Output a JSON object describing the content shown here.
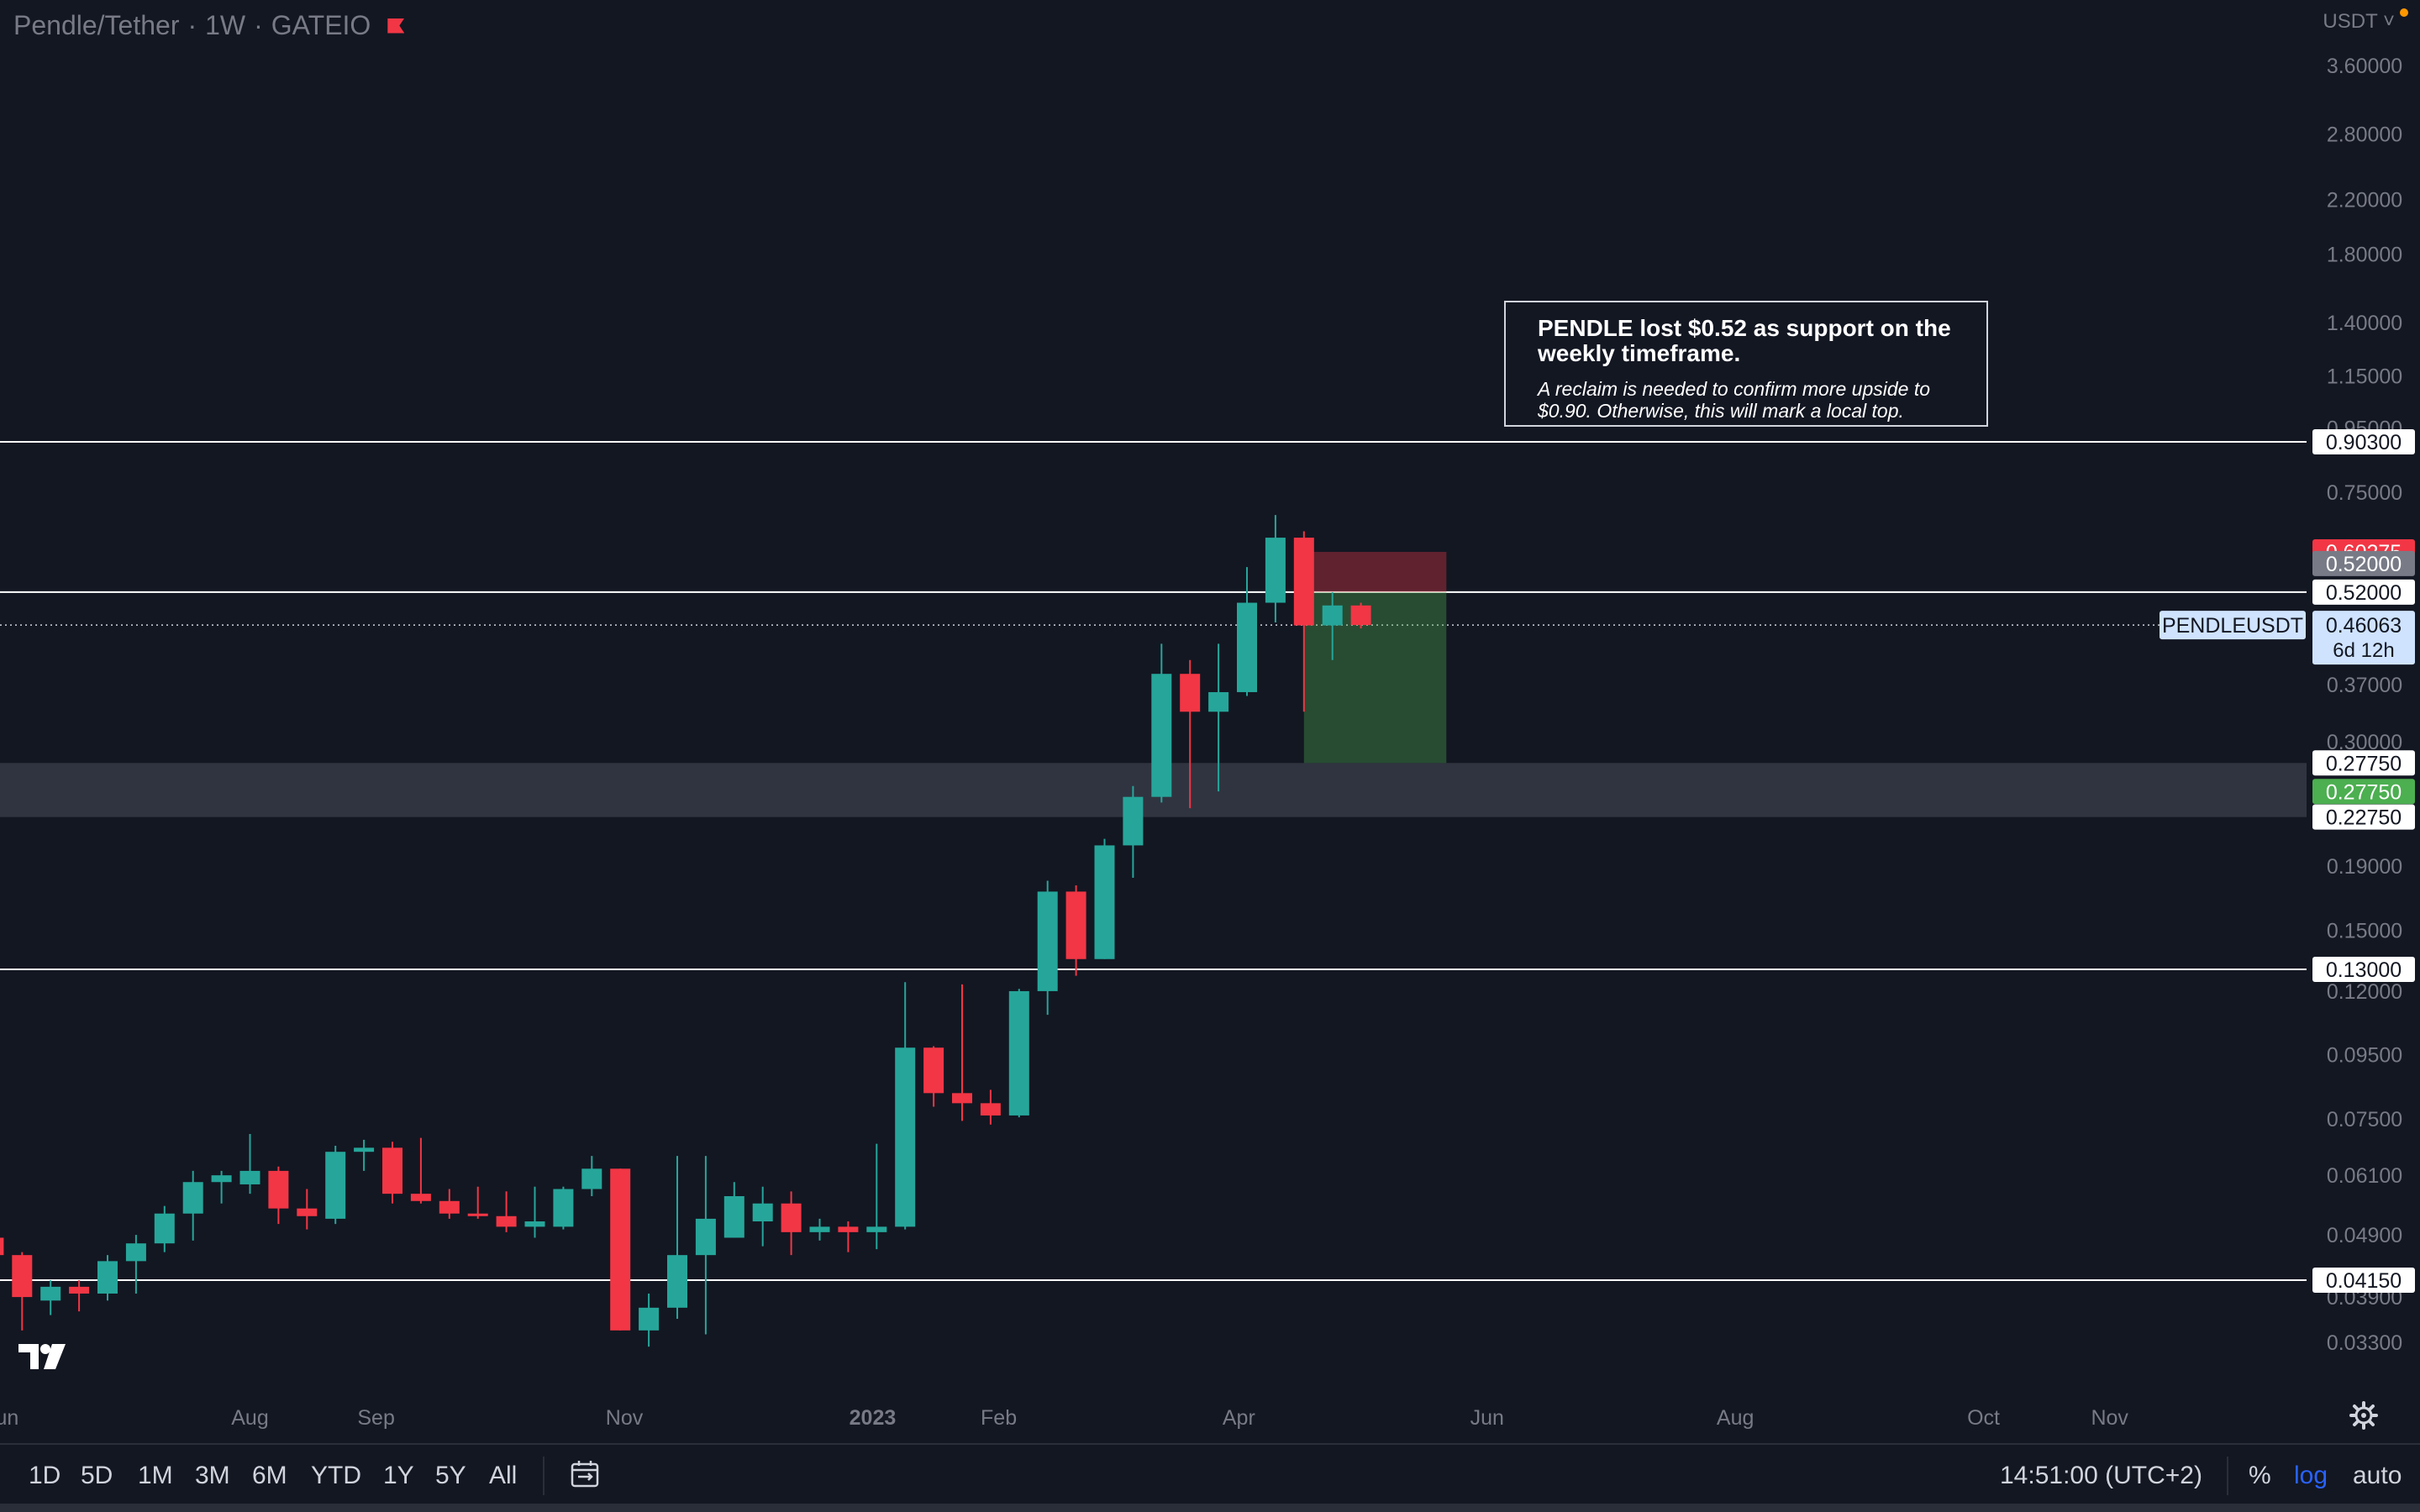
{
  "legend": {
    "title": "Pendle/Tether",
    "timeframe": "1W",
    "exchange": "GATEIO"
  },
  "currency": "USDT",
  "note": {
    "headline": "PENDLE lost $0.52 as support on the weekly timeframe.",
    "subtext": "A reclaim is needed to confirm more upside to $0.90. Otherwise, this will mark a local top."
  },
  "toolbar": {
    "range_buttons": [
      "1D",
      "5D",
      "1M",
      "3M",
      "6M",
      "YTD",
      "1Y",
      "5Y",
      "All"
    ],
    "clock": "14:51:00 (UTC+2)",
    "percent_label": "%",
    "log_label": "log",
    "auto_label": "auto"
  },
  "colors": {
    "background": "#131722",
    "up": "#26a69a",
    "down": "#f23645",
    "grid_text": "#787b86",
    "hline": "#ffffff"
  },
  "chart_data": {
    "type": "candlestick",
    "symbol": "PENDLEUSDT",
    "last_price": "0.46063",
    "countdown": "6d 12h",
    "y_scale": "log",
    "y_ticks": [
      "3.60000",
      "2.80000",
      "2.20000",
      "1.80000",
      "1.40000",
      "1.15000",
      "0.95000",
      "0.75000",
      "0.60000",
      "0.37000",
      "0.30000",
      "0.19000",
      "0.15000",
      "0.12000",
      "0.09500",
      "0.07500",
      "0.06100",
      "0.04900",
      "0.03900",
      "0.03300"
    ],
    "y_tick_values": [
      3.6,
      2.8,
      2.2,
      1.8,
      1.4,
      1.15,
      0.95,
      0.75,
      0.6,
      0.37,
      0.3,
      0.19,
      0.15,
      0.12,
      0.095,
      0.075,
      0.061,
      0.049,
      0.039,
      0.033
    ],
    "x_ticks": [
      "Jun",
      "Aug",
      "Sep",
      "Nov",
      "2023",
      "Feb",
      "Apr",
      "Jun",
      "Aug",
      "Oct",
      "Nov"
    ],
    "x_tick_dates": [
      "2022-06-01",
      "2022-08-01",
      "2022-09-01",
      "2022-11-01",
      "2023-01-01",
      "2023-02-01",
      "2023-04-01",
      "2023-06-01",
      "2023-08-01",
      "2023-10-01",
      "2023-11-01"
    ],
    "horizontal_lines": [
      {
        "label": "0.90300",
        "value": 0.903
      },
      {
        "label": "0.52000",
        "value": 0.52
      },
      {
        "label": "0.13000",
        "value": 0.13
      },
      {
        "label": "0.04150",
        "value": 0.0415
      }
    ],
    "zone": {
      "top_label": "0.27750",
      "top": 0.2775,
      "bottom_label": "0.22750",
      "bottom": 0.2275
    },
    "position": {
      "type": "short",
      "start": "2023-04-17",
      "end": "2023-05-22",
      "stop": 0.60275,
      "entry": 0.52,
      "target": 0.2775,
      "stop_label": "0.60275",
      "entry_label": "0.52000",
      "target_label": "0.27750"
    },
    "candles": [
      {
        "date": "2022-05-30",
        "o": 0.0485,
        "h": 0.0495,
        "l": 0.045,
        "c": 0.0455
      },
      {
        "date": "2022-06-06",
        "o": 0.0455,
        "h": 0.046,
        "l": 0.0345,
        "c": 0.039
      },
      {
        "date": "2022-06-13",
        "o": 0.0385,
        "h": 0.0415,
        "l": 0.0365,
        "c": 0.0405
      },
      {
        "date": "2022-06-20",
        "o": 0.0405,
        "h": 0.0415,
        "l": 0.037,
        "c": 0.0395
      },
      {
        "date": "2022-06-27",
        "o": 0.0395,
        "h": 0.0455,
        "l": 0.0385,
        "c": 0.0445
      },
      {
        "date": "2022-07-04",
        "o": 0.0445,
        "h": 0.049,
        "l": 0.0395,
        "c": 0.0475
      },
      {
        "date": "2022-07-11",
        "o": 0.0475,
        "h": 0.0545,
        "l": 0.046,
        "c": 0.053
      },
      {
        "date": "2022-07-18",
        "o": 0.053,
        "h": 0.062,
        "l": 0.048,
        "c": 0.0595
      },
      {
        "date": "2022-07-25",
        "o": 0.0595,
        "h": 0.062,
        "l": 0.055,
        "c": 0.061
      },
      {
        "date": "2022-08-01",
        "o": 0.059,
        "h": 0.071,
        "l": 0.057,
        "c": 0.062
      },
      {
        "date": "2022-08-08",
        "o": 0.062,
        "h": 0.063,
        "l": 0.051,
        "c": 0.054
      },
      {
        "date": "2022-08-15",
        "o": 0.054,
        "h": 0.058,
        "l": 0.05,
        "c": 0.0525
      },
      {
        "date": "2022-08-22",
        "o": 0.052,
        "h": 0.068,
        "l": 0.051,
        "c": 0.0665
      },
      {
        "date": "2022-08-29",
        "o": 0.0665,
        "h": 0.0695,
        "l": 0.062,
        "c": 0.0675
      },
      {
        "date": "2022-09-05",
        "o": 0.0675,
        "h": 0.069,
        "l": 0.055,
        "c": 0.057
      },
      {
        "date": "2022-09-12",
        "o": 0.057,
        "h": 0.07,
        "l": 0.055,
        "c": 0.0555
      },
      {
        "date": "2022-09-19",
        "o": 0.0555,
        "h": 0.058,
        "l": 0.052,
        "c": 0.053
      },
      {
        "date": "2022-09-26",
        "o": 0.053,
        "h": 0.0585,
        "l": 0.052,
        "c": 0.0525
      },
      {
        "date": "2022-10-03",
        "o": 0.0525,
        "h": 0.0575,
        "l": 0.0495,
        "c": 0.0505
      },
      {
        "date": "2022-10-10",
        "o": 0.0505,
        "h": 0.0585,
        "l": 0.0485,
        "c": 0.0515
      },
      {
        "date": "2022-10-17",
        "o": 0.0505,
        "h": 0.0585,
        "l": 0.05,
        "c": 0.058
      },
      {
        "date": "2022-10-24",
        "o": 0.058,
        "h": 0.0655,
        "l": 0.0565,
        "c": 0.0625
      },
      {
        "date": "2022-10-31",
        "o": 0.0625,
        "h": 0.0625,
        "l": 0.0345,
        "c": 0.0345
      },
      {
        "date": "2022-11-07",
        "o": 0.0345,
        "h": 0.0395,
        "l": 0.0325,
        "c": 0.0375
      },
      {
        "date": "2022-11-14",
        "o": 0.0375,
        "h": 0.0655,
        "l": 0.036,
        "c": 0.0455
      },
      {
        "date": "2022-11-21",
        "o": 0.0455,
        "h": 0.0655,
        "l": 0.034,
        "c": 0.052
      },
      {
        "date": "2022-11-28",
        "o": 0.0485,
        "h": 0.0595,
        "l": 0.0485,
        "c": 0.0565
      },
      {
        "date": "2022-12-05",
        "o": 0.0515,
        "h": 0.0585,
        "l": 0.047,
        "c": 0.055
      },
      {
        "date": "2022-12-12",
        "o": 0.055,
        "h": 0.0575,
        "l": 0.0455,
        "c": 0.0495
      },
      {
        "date": "2022-12-19",
        "o": 0.0495,
        "h": 0.052,
        "l": 0.048,
        "c": 0.0505
      },
      {
        "date": "2022-12-26",
        "o": 0.0505,
        "h": 0.0515,
        "l": 0.046,
        "c": 0.0495
      },
      {
        "date": "2023-01-02",
        "o": 0.0495,
        "h": 0.0685,
        "l": 0.0465,
        "c": 0.0505
      },
      {
        "date": "2023-01-09",
        "o": 0.0505,
        "h": 0.124,
        "l": 0.05,
        "c": 0.0975
      },
      {
        "date": "2023-01-16",
        "o": 0.0975,
        "h": 0.098,
        "l": 0.0785,
        "c": 0.0825
      },
      {
        "date": "2023-01-23",
        "o": 0.0825,
        "h": 0.123,
        "l": 0.0745,
        "c": 0.0795
      },
      {
        "date": "2023-01-30",
        "o": 0.0795,
        "h": 0.0835,
        "l": 0.0735,
        "c": 0.076
      },
      {
        "date": "2023-02-06",
        "o": 0.076,
        "h": 0.121,
        "l": 0.0755,
        "c": 0.12
      },
      {
        "date": "2023-02-13",
        "o": 0.12,
        "h": 0.18,
        "l": 0.11,
        "c": 0.173
      },
      {
        "date": "2023-02-20",
        "o": 0.173,
        "h": 0.177,
        "l": 0.127,
        "c": 0.135
      },
      {
        "date": "2023-02-27",
        "o": 0.135,
        "h": 0.21,
        "l": 0.135,
        "c": 0.205
      },
      {
        "date": "2023-03-06",
        "o": 0.205,
        "h": 0.255,
        "l": 0.182,
        "c": 0.245
      },
      {
        "date": "2023-03-13",
        "o": 0.245,
        "h": 0.43,
        "l": 0.24,
        "c": 0.385
      },
      {
        "date": "2023-03-20",
        "o": 0.385,
        "h": 0.405,
        "l": 0.235,
        "c": 0.335
      },
      {
        "date": "2023-03-27",
        "o": 0.335,
        "h": 0.43,
        "l": 0.25,
        "c": 0.36
      },
      {
        "date": "2023-04-03",
        "o": 0.36,
        "h": 0.57,
        "l": 0.355,
        "c": 0.5
      },
      {
        "date": "2023-04-10",
        "o": 0.5,
        "h": 0.69,
        "l": 0.465,
        "c": 0.635
      },
      {
        "date": "2023-04-17",
        "o": 0.635,
        "h": 0.65,
        "l": 0.335,
        "c": 0.46
      },
      {
        "date": "2023-04-24",
        "o": 0.46,
        "h": 0.52,
        "l": 0.405,
        "c": 0.495
      },
      {
        "date": "2023-05-01",
        "o": 0.495,
        "h": 0.5,
        "l": 0.455,
        "c": 0.4606
      }
    ]
  }
}
